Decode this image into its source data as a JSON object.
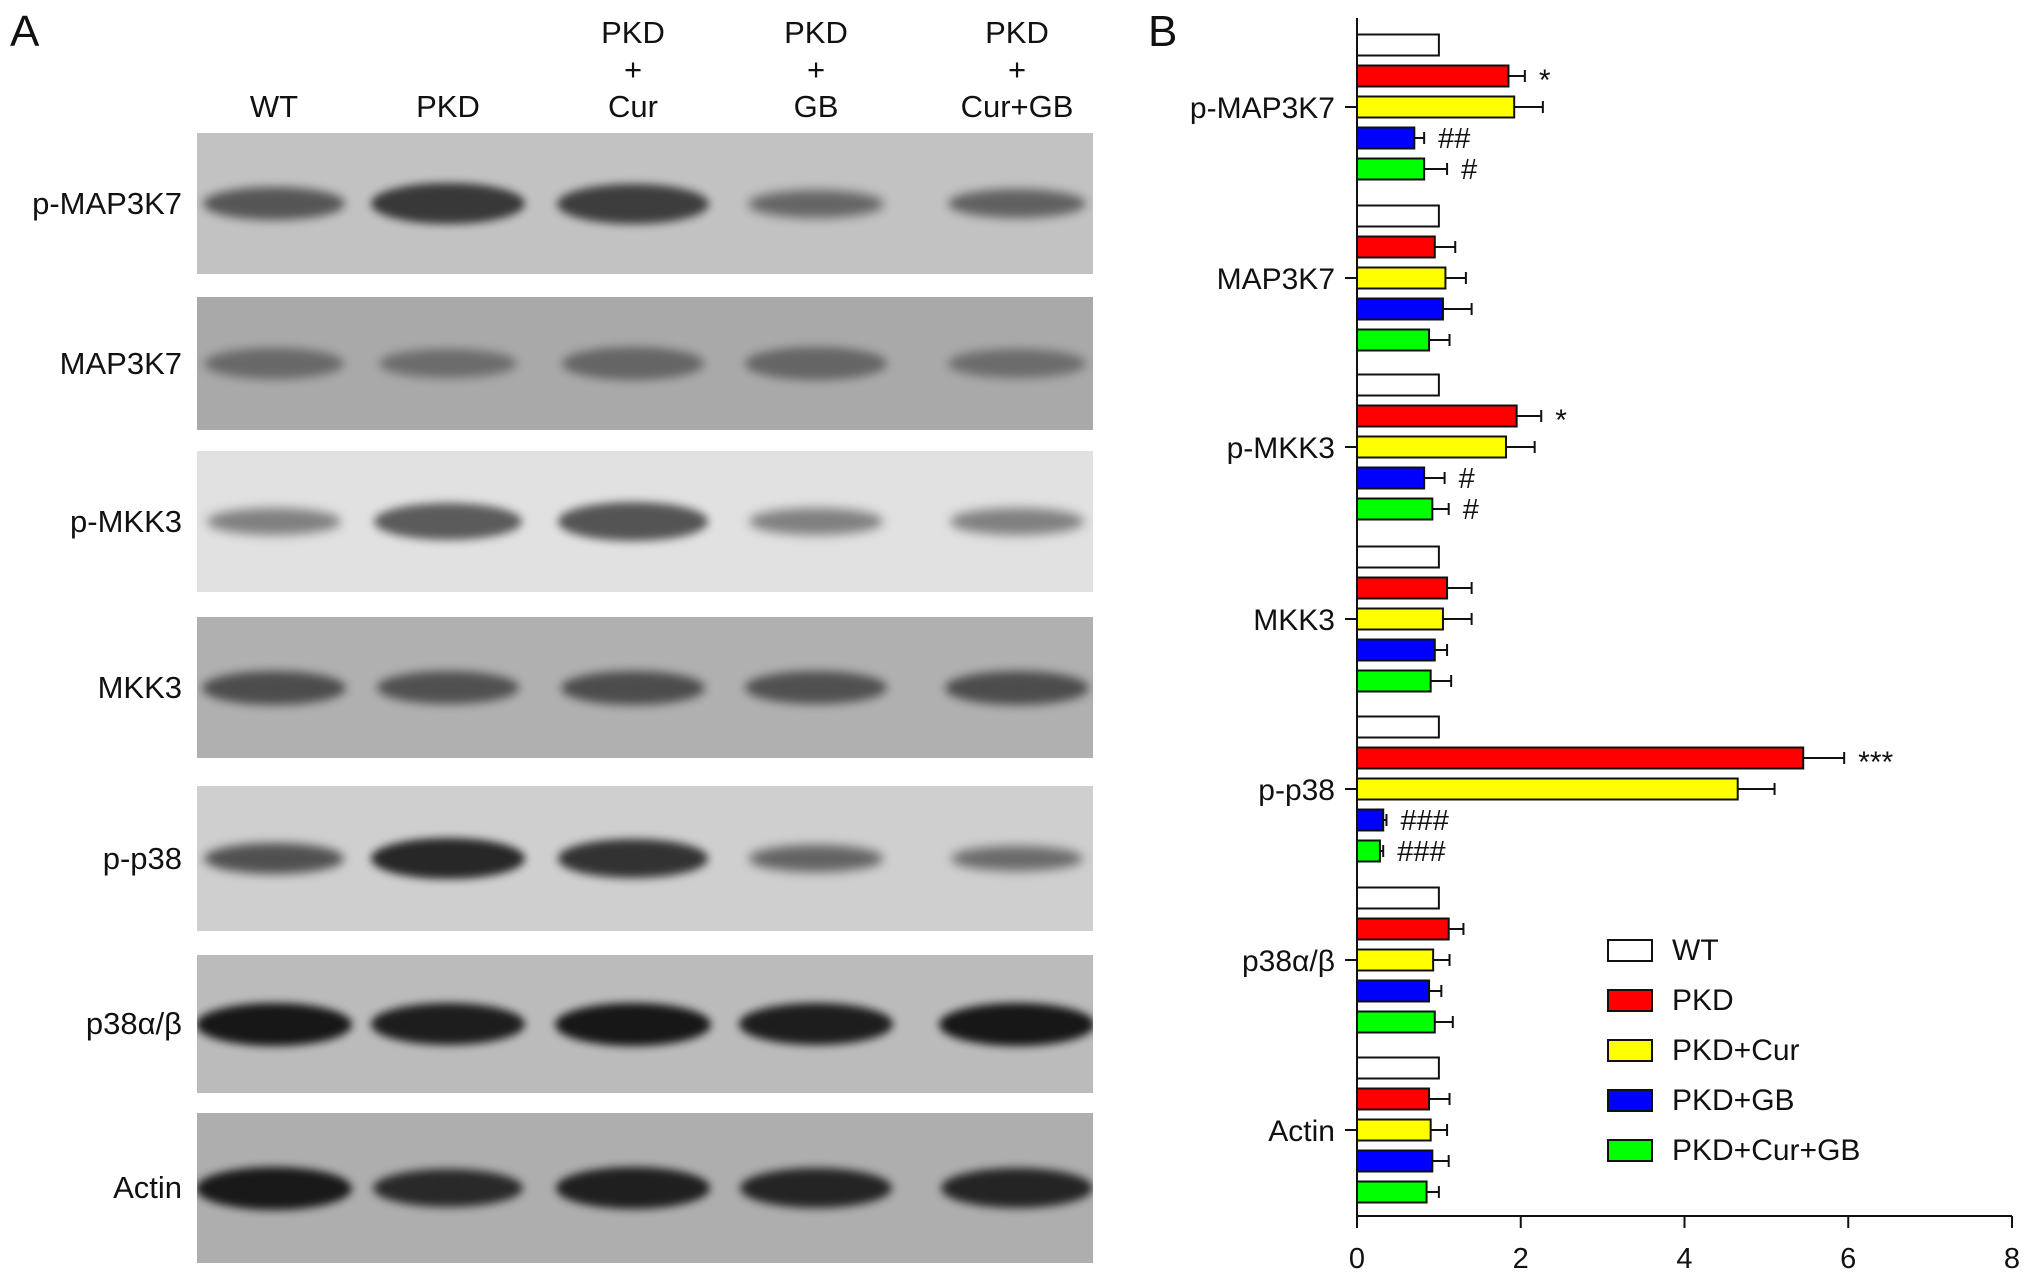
{
  "panels": {
    "a": "A",
    "b": "B"
  },
  "lanes": [
    {
      "lines": [
        "WT"
      ]
    },
    {
      "lines": [
        "PKD"
      ]
    },
    {
      "lines": [
        "PKD",
        "+",
        "Cur"
      ]
    },
    {
      "lines": [
        "PKD",
        "+",
        "GB"
      ]
    },
    {
      "lines": [
        "PKD",
        "+",
        "Cur+GB"
      ]
    }
  ],
  "blots": [
    {
      "label": "p-MAP3K7",
      "background": "#c2c2c2",
      "band_color": "#2a2a2a",
      "intensity": [
        0.55,
        0.85,
        0.8,
        0.4,
        0.45
      ]
    },
    {
      "label": "MAP3K7",
      "background": "#a9a9a9",
      "band_color": "#4a4a4a",
      "intensity": [
        0.5,
        0.45,
        0.55,
        0.55,
        0.45
      ]
    },
    {
      "label": "p-MKK3",
      "background": "#e1e1e1",
      "band_color": "#3a3a3a",
      "intensity": [
        0.35,
        0.7,
        0.75,
        0.35,
        0.35
      ]
    },
    {
      "label": "MKK3",
      "background": "#b0b0b0",
      "band_color": "#2a2a2a",
      "intensity": [
        0.6,
        0.55,
        0.6,
        0.55,
        0.6
      ]
    },
    {
      "label": "p-p38",
      "background": "#cfcfcf",
      "band_color": "#151515",
      "intensity": [
        0.5,
        0.85,
        0.75,
        0.35,
        0.3
      ]
    },
    {
      "label": "p38α/β",
      "background": "#bbbbbb",
      "band_color": "#0d0d0d",
      "intensity": [
        0.9,
        0.85,
        0.9,
        0.85,
        0.9
      ]
    },
    {
      "label": "Actin",
      "background": "#aeaeae",
      "band_color": "#101010",
      "intensity": [
        0.9,
        0.75,
        0.85,
        0.8,
        0.8
      ]
    }
  ],
  "chart_data": {
    "type": "bar",
    "orientation": "horizontal",
    "categories": [
      "p-MAP3K7",
      "MAP3K7",
      "p-MKK3",
      "MKK3",
      "p-p38",
      "p38α/β",
      "Actin"
    ],
    "series": [
      {
        "name": "WT",
        "color": "#ffffff",
        "values": [
          1.0,
          1.0,
          1.0,
          1.0,
          1.0,
          1.0,
          1.0
        ],
        "errors": [
          0,
          0,
          0,
          0,
          0,
          0,
          0
        ],
        "annotations": [
          "",
          "",
          "",
          "",
          "",
          "",
          ""
        ]
      },
      {
        "name": "PKD",
        "color": "#ff0000",
        "values": [
          1.85,
          0.95,
          1.95,
          1.1,
          5.45,
          1.12,
          0.88
        ],
        "errors": [
          0.2,
          0.25,
          0.3,
          0.3,
          0.5,
          0.18,
          0.25
        ],
        "annotations": [
          "*",
          "",
          "*",
          "",
          "***",
          "",
          ""
        ]
      },
      {
        "name": "PKD+Cur",
        "color": "#ffff00",
        "values": [
          1.92,
          1.08,
          1.82,
          1.05,
          4.65,
          0.93,
          0.9
        ],
        "errors": [
          0.35,
          0.25,
          0.35,
          0.35,
          0.45,
          0.2,
          0.2
        ],
        "annotations": [
          "",
          "",
          "",
          "",
          "",
          "",
          ""
        ]
      },
      {
        "name": "PKD+GB",
        "color": "#0000ff",
        "values": [
          0.7,
          1.05,
          0.82,
          0.95,
          0.32,
          0.88,
          0.92
        ],
        "errors": [
          0.12,
          0.35,
          0.25,
          0.15,
          0.04,
          0.15,
          0.2
        ],
        "annotations": [
          "##",
          "",
          "#",
          "",
          "###",
          "",
          ""
        ]
      },
      {
        "name": "PKD+Cur+GB",
        "color": "#00ff00",
        "values": [
          0.82,
          0.88,
          0.92,
          0.9,
          0.28,
          0.95,
          0.85
        ],
        "errors": [
          0.28,
          0.25,
          0.2,
          0.25,
          0.04,
          0.22,
          0.15
        ],
        "annotations": [
          "#",
          "",
          "#",
          "",
          "###",
          "",
          ""
        ]
      }
    ],
    "xlim": [
      0,
      8
    ],
    "xticks": [
      0,
      2,
      4,
      6,
      8
    ],
    "legend_position": "bottom-right",
    "grid": false
  }
}
